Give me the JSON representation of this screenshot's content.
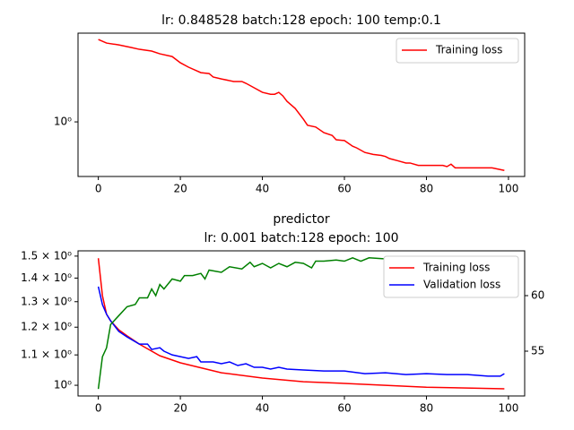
{
  "chart_data": [
    {
      "type": "line",
      "title": "lr: 0.848528 batch:128 epoch: 100 temp:0.1",
      "xlim": [
        -4.95,
        103.95
      ],
      "xticks": [
        0,
        20,
        40,
        60,
        80,
        100
      ],
      "ylim": [
        0.367,
        5.1
      ],
      "log_y": true,
      "yticks": [
        {
          "value": 1,
          "label": "10⁰"
        }
      ],
      "legend": "upper right",
      "series": [
        {
          "name": "Training loss",
          "color": "#ff0000",
          "x": [
            0,
            2,
            5,
            8,
            10,
            13,
            15,
            18,
            20,
            22,
            25,
            27,
            28,
            30,
            33,
            35,
            36,
            38,
            40,
            42,
            43,
            44,
            45,
            46,
            48,
            50,
            51,
            53,
            55,
            57,
            58,
            60,
            62,
            63,
            65,
            67,
            69,
            70,
            71,
            73,
            75,
            76,
            78,
            80,
            82,
            84,
            85,
            86,
            87,
            90,
            93,
            96,
            99
          ],
          "values": [
            4.54,
            4.25,
            4.11,
            3.92,
            3.79,
            3.67,
            3.49,
            3.32,
            2.96,
            2.73,
            2.47,
            2.43,
            2.28,
            2.2,
            2.1,
            2.1,
            2.03,
            1.87,
            1.72,
            1.66,
            1.66,
            1.72,
            1.61,
            1.46,
            1.28,
            1.05,
            0.94,
            0.91,
            0.82,
            0.78,
            0.72,
            0.71,
            0.64,
            0.62,
            0.57,
            0.55,
            0.54,
            0.53,
            0.51,
            0.49,
            0.47,
            0.47,
            0.45,
            0.45,
            0.45,
            0.45,
            0.44,
            0.46,
            0.43,
            0.43,
            0.43,
            0.43,
            0.41
          ]
        }
      ]
    },
    {
      "type": "line",
      "title": "predictor",
      "subtitle": "lr: 0.001 batch:128 epoch: 100",
      "xlim": [
        -4.95,
        103.95
      ],
      "xticks": [
        0,
        20,
        40,
        60,
        80,
        100
      ],
      "ylim": [
        0.967,
        1.525
      ],
      "log_y": true,
      "yticks": [
        {
          "value": 1,
          "label": "10⁰"
        },
        {
          "value": 1.1,
          "label": "1.1 × 10⁰"
        },
        {
          "value": 1.2,
          "label": "1.2 × 10⁰"
        },
        {
          "value": 1.3,
          "label": "1.3 × 10⁰"
        },
        {
          "value": 1.4,
          "label": "1.4 × 10⁰"
        },
        {
          "value": 1.5,
          "label": "1.5 × 10⁰"
        }
      ],
      "y2lim": [
        50.97,
        64.03
      ],
      "y2ticks": [
        55,
        60
      ],
      "legend": "upper right",
      "series": [
        {
          "name": "Training loss",
          "color": "#ff0000",
          "x": [
            0,
            1,
            2,
            3,
            5,
            7,
            10,
            15,
            20,
            30,
            40,
            50,
            60,
            80,
            99
          ],
          "values": [
            1.49,
            1.325,
            1.25,
            1.224,
            1.19,
            1.168,
            1.138,
            1.097,
            1.073,
            1.04,
            1.023,
            1.011,
            1.006,
            0.994,
            0.989
          ]
        },
        {
          "name": "Validation loss",
          "color": "#0000ff",
          "x": [
            0,
            1,
            2,
            3,
            5,
            7,
            10,
            12,
            13,
            15,
            16,
            18,
            20,
            22,
            24,
            25,
            28,
            30,
            32,
            34,
            36,
            38,
            40,
            42,
            44,
            46,
            50,
            55,
            60,
            65,
            70,
            75,
            80,
            85,
            90,
            95,
            98,
            99
          ],
          "values": [
            1.363,
            1.288,
            1.25,
            1.224,
            1.184,
            1.164,
            1.138,
            1.138,
            1.119,
            1.125,
            1.113,
            1.1,
            1.094,
            1.088,
            1.094,
            1.076,
            1.076,
            1.07,
            1.076,
            1.064,
            1.07,
            1.058,
            1.058,
            1.052,
            1.058,
            1.052,
            1.049,
            1.046,
            1.046,
            1.037,
            1.04,
            1.034,
            1.037,
            1.034,
            1.034,
            1.029,
            1.029,
            1.037
          ]
        },
        {
          "color": "#008000",
          "axis": "y2",
          "x": [
            0,
            1,
            2,
            3,
            5,
            7,
            9,
            10,
            12,
            13,
            14,
            15,
            16,
            18,
            20,
            21,
            23,
            25,
            26,
            27,
            30,
            32,
            35,
            37,
            38,
            40,
            42,
            44,
            46,
            48,
            50,
            52,
            53,
            55,
            58,
            60,
            62,
            64,
            66,
            70,
            75,
            80,
            85,
            90,
            99
          ],
          "values": [
            51.6,
            54.5,
            55.3,
            57.4,
            58.2,
            59.0,
            59.2,
            59.8,
            59.8,
            60.6,
            60.0,
            61.0,
            60.6,
            61.5,
            61.3,
            61.8,
            61.8,
            62.0,
            61.5,
            62.3,
            62.1,
            62.6,
            62.4,
            63.0,
            62.6,
            62.9,
            62.5,
            62.9,
            62.6,
            63.0,
            62.9,
            62.5,
            63.1,
            63.1,
            63.2,
            63.1,
            63.4,
            63.1,
            63.4,
            63.3,
            63.4,
            63.4,
            63.4,
            63.4,
            63.4
          ]
        }
      ]
    }
  ]
}
